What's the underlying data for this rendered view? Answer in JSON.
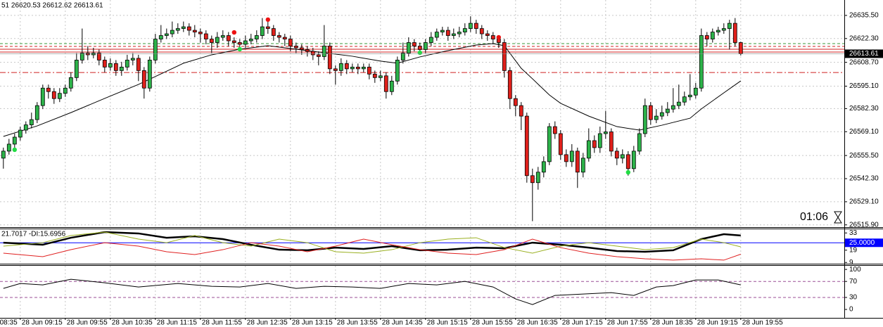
{
  "chart_data": [
    {
      "type": "candlestick",
      "header": "51 26620.53 26612.62 26613.61",
      "timer": "01:06",
      "up_color": "#2db34a",
      "down_color": "#e0201b",
      "grid": true,
      "xlim": [
        -0.6,
        149.4
      ],
      "xticks": [
        {
          "value": -5,
          "label": "28 Jun 08:35"
        },
        {
          "value": 3,
          "label": "28 Jun 09:15"
        },
        {
          "value": 11,
          "label": "28 Jun 09:55"
        },
        {
          "value": 19,
          "label": "28 Jun 10:35"
        },
        {
          "value": 27,
          "label": "28 Jun 11:15"
        },
        {
          "value": 35,
          "label": "28 Jun 11:55"
        },
        {
          "value": 43,
          "label": "28 Jun 12:35"
        },
        {
          "value": 51,
          "label": "28 Jun 13:15"
        },
        {
          "value": 59,
          "label": "28 Jun 13:55"
        },
        {
          "value": 67,
          "label": "28 Jun 14:35"
        },
        {
          "value": 75,
          "label": "28 Jun 15:15"
        },
        {
          "value": 83,
          "label": "28 Jun 15:55"
        },
        {
          "value": 91,
          "label": "28 Jun 16:35"
        },
        {
          "value": 99,
          "label": "28 Jun 17:15"
        },
        {
          "value": 107,
          "label": "28 Jun 17:55"
        },
        {
          "value": 115,
          "label": "28 Jun 18:35"
        },
        {
          "value": 123,
          "label": "28 Jun 19:15"
        },
        {
          "value": 131,
          "label": "28 Jun 19:55"
        }
      ],
      "ylim": [
        26514.6,
        26644.3
      ],
      "yticks": [
        {
          "value": 26635.5,
          "label": "26635.50"
        },
        {
          "value": 26622.3,
          "label": "26622.30"
        },
        {
          "value": 26608.7,
          "label": "26608.70"
        },
        {
          "value": 26595.1,
          "label": "26595.10"
        },
        {
          "value": 26582.3,
          "label": "26582.30"
        },
        {
          "value": 26569.1,
          "label": "26569.10"
        },
        {
          "value": 26555.5,
          "label": "26555.50"
        },
        {
          "value": 26542.3,
          "label": "26542.30"
        },
        {
          "value": 26529.1,
          "label": "26529.10"
        },
        {
          "value": 26515.9,
          "label": "26515.90"
        }
      ],
      "open": [
        26554,
        26558,
        26562,
        26566,
        26570,
        26573,
        26576,
        26584,
        26594,
        26592,
        26588,
        26591,
        26594,
        26600,
        26610,
        26614,
        26613,
        26614,
        26610,
        26606,
        26608,
        26604,
        26606,
        26610,
        26611,
        26604,
        26594,
        26610,
        26622,
        26624,
        26625,
        26627,
        26628,
        26629,
        26627,
        26626,
        26625,
        26622,
        26620,
        26623,
        26624,
        26621,
        26620,
        26619,
        26621,
        26622,
        26624,
        26629,
        26628,
        26624,
        26623,
        26622,
        26618,
        26617,
        26616,
        26615,
        26613,
        26612,
        26618,
        26605,
        26604,
        26608,
        26605,
        26606,
        26605,
        26606,
        26602,
        26600,
        26601,
        26592,
        26598,
        26610,
        26614,
        26620,
        26618,
        26616,
        26620,
        26623,
        26626,
        26627,
        26624,
        26625,
        26626,
        26628,
        26631,
        26628,
        26625,
        26624,
        26622,
        26620,
        26604,
        26588,
        26584,
        26578,
        26544,
        26540,
        26546,
        26552,
        26572,
        26568,
        26556,
        26552,
        26558,
        26546,
        26554,
        26564,
        26560,
        26568,
        26569,
        26558,
        26554,
        26556,
        26548,
        26558,
        26568,
        26584,
        26576,
        26578,
        26580,
        26582,
        26584,
        26586,
        26589,
        26590,
        26594,
        26624,
        26622,
        26626,
        26627,
        26628,
        26631,
        26620
      ],
      "high": [
        26560,
        26565,
        26568,
        26572,
        26575,
        26580,
        26586,
        26596,
        26596,
        26594,
        26594,
        26596,
        26603,
        26614,
        26628,
        26618,
        26617,
        26616,
        26612,
        26611,
        26610,
        26609,
        26613,
        26614,
        26613,
        26606,
        26612,
        26625,
        26630,
        26628,
        26632,
        26631,
        26632,
        26631,
        26630,
        26628,
        26627,
        26624,
        26626,
        26627,
        26626,
        26623,
        26622,
        26624,
        26625,
        26627,
        26634,
        26632,
        26630,
        26626,
        26625,
        26624,
        26620,
        26619,
        26618,
        26617,
        26615,
        26630,
        26620,
        26607,
        26611,
        26610,
        26608,
        26608,
        26608,
        26608,
        26604,
        26604,
        26603,
        26601,
        26612,
        26620,
        26623,
        26622,
        26620,
        26622,
        26626,
        26628,
        26629,
        26629,
        26628,
        26629,
        26631,
        26635,
        26633,
        26630,
        26627,
        26626,
        26624,
        26622,
        26606,
        26590,
        26586,
        26580,
        26548,
        26549,
        26555,
        26574,
        26575,
        26570,
        26559,
        26562,
        26560,
        26557,
        26571,
        26567,
        26572,
        26581,
        26571,
        26560,
        26559,
        26558,
        26561,
        26571,
        26588,
        26586,
        26582,
        26584,
        26586,
        26594,
        26596,
        26592,
        26602,
        26597,
        26628,
        26626,
        26628,
        26629,
        26631,
        26633,
        26634,
        26620.53
      ],
      "low": [
        26548,
        26556,
        26560,
        26564,
        26568,
        26571,
        26574,
        26582,
        26588,
        26585,
        26586,
        26589,
        26592,
        26598,
        26608,
        26610,
        26611,
        26607,
        26603,
        26604,
        26601,
        26601,
        26604,
        26607,
        26598,
        26588,
        26592,
        26608,
        26620,
        26622,
        26623,
        26625,
        26626,
        26624,
        26623,
        26620,
        26619,
        26614,
        26617,
        26621,
        26618,
        26617,
        26616,
        26617,
        26619,
        26620,
        26622,
        26625,
        26621,
        26620,
        26618,
        26615,
        26614,
        26613,
        26612,
        26610,
        26607,
        26610,
        26602,
        26596,
        26601,
        26602,
        26603,
        26602,
        26603,
        26599,
        26597,
        26598,
        26588,
        26590,
        26596,
        26608,
        26612,
        26615,
        26613,
        26614,
        26618,
        26621,
        26624,
        26621,
        26622,
        26623,
        26624,
        26626,
        26625,
        26622,
        26621,
        26619,
        26617,
        26600,
        26582,
        26578,
        26570,
        26540,
        26518,
        26536,
        26543,
        26550,
        26565,
        26553,
        26549,
        26549,
        26537,
        26543,
        26552,
        26557,
        26557,
        26565,
        26555,
        26550,
        26551,
        26544,
        26546,
        26556,
        26566,
        26573,
        26574,
        26576,
        26578,
        26580,
        26582,
        26584,
        26587,
        26588,
        26592,
        26618,
        26620,
        26624,
        26625,
        26616,
        26618,
        26612.62
      ],
      "close": [
        26558,
        26562,
        26566,
        26570,
        26573,
        26576,
        26584,
        26594,
        26592,
        26588,
        26591,
        26594,
        26600,
        26610,
        26614,
        26613,
        26614,
        26610,
        26606,
        26608,
        26604,
        26606,
        26610,
        26611,
        26604,
        26594,
        26610,
        26622,
        26624,
        26625,
        26627,
        26628,
        26629,
        26627,
        26626,
        26625,
        26622,
        26620,
        26623,
        26624,
        26621,
        26620,
        26619,
        26621,
        26622,
        26624,
        26629,
        26628,
        26624,
        26623,
        26622,
        26618,
        26617,
        26616,
        26615,
        26613,
        26612,
        26618,
        26605,
        26604,
        26608,
        26605,
        26606,
        26605,
        26606,
        26602,
        26600,
        26601,
        26592,
        26598,
        26610,
        26614,
        26620,
        26618,
        26616,
        26620,
        26623,
        26626,
        26627,
        26624,
        26625,
        26626,
        26628,
        26631,
        26628,
        26625,
        26624,
        26622,
        26620,
        26604,
        26588,
        26584,
        26578,
        26544,
        26540,
        26546,
        26552,
        26572,
        26568,
        26556,
        26552,
        26558,
        26546,
        26554,
        26564,
        26560,
        26568,
        26569,
        26558,
        26554,
        26556,
        26548,
        26558,
        26568,
        26584,
        26576,
        26578,
        26580,
        26582,
        26584,
        26586,
        26589,
        26590,
        26594,
        26624,
        26622,
        26626,
        26627,
        26628,
        26631,
        26620,
        26613.61
      ],
      "ma": {
        "color": "#000000",
        "x": [
          0,
          6,
          12,
          18,
          24,
          28,
          32,
          37,
          42,
          47,
          52,
          57,
          62,
          67,
          70,
          74,
          79,
          84,
          87,
          89,
          92,
          94,
          97,
          99,
          104,
          109,
          113,
          117,
          122,
          124,
          128,
          131
        ],
        "values": [
          26566.4,
          26572.4,
          26580.0,
          26588.1,
          26596.1,
          26602.1,
          26608.2,
          26613.0,
          26616.2,
          26618.2,
          26616.2,
          26614.2,
          26612.2,
          26609.4,
          26608.2,
          26611.8,
          26615.4,
          26618.6,
          26619.4,
          26618.2,
          26605.3,
          26599.3,
          26590.1,
          26585.3,
          26578.0,
          26572.0,
          26570.0,
          26572.8,
          26576.8,
          26582.1,
          26591.3,
          26598.1
        ]
      },
      "levels": [
        {
          "value": 26619.4,
          "color": "#3a9a3a",
          "dash": "dashed"
        },
        {
          "value": 26617.8,
          "color": "#d02020",
          "dash": "dashed"
        },
        {
          "value": 26616.2,
          "color": "#d02020",
          "dash": "solid"
        },
        {
          "value": 26614.6,
          "color": "#d02020",
          "dash": "solid"
        },
        {
          "value": 26602.9,
          "color": "#d02020",
          "dash": "dashdot"
        }
      ],
      "signals": [
        {
          "index": 2,
          "value": 26558.8,
          "color": "#22dd44"
        },
        {
          "index": 41,
          "value": 26625.8,
          "color": "#ee1111"
        },
        {
          "index": 42,
          "value": 26616.2,
          "color": "#22dd44"
        },
        {
          "index": 47,
          "value": 26633.1,
          "color": "#ee1111"
        },
        {
          "index": 74,
          "value": 26614.2,
          "color": "#22dd44"
        },
        {
          "index": 88,
          "value": 26623.0,
          "color": "#ee1111"
        },
        {
          "index": 111,
          "value": 26545.9,
          "color": "#22dd44"
        }
      ]
    },
    {
      "type": "line",
      "header": "21.7017 -DI:15.6956",
      "ylim": [
        8,
        36
      ],
      "yticks": [
        33,
        19,
        9
      ],
      "level": {
        "value": 25,
        "label": "25.0000"
      },
      "level_color": "#0000ff",
      "x": [
        0,
        7,
        12,
        18,
        24,
        29,
        34,
        39,
        44,
        49,
        54,
        59,
        64,
        69,
        74,
        79,
        84,
        89,
        94,
        99,
        104,
        109,
        114,
        119,
        124,
        128,
        131
      ],
      "series": [
        {
          "color": "#000000",
          "width": 2.5,
          "values": [
            25.1,
            23.4,
            29.1,
            33.7,
            32.6,
            29.1,
            30.3,
            28.0,
            23.4,
            19.4,
            18.9,
            21.1,
            20.0,
            22.3,
            18.9,
            19.4,
            21.1,
            20.6,
            25.1,
            23.4,
            21.1,
            18.3,
            17.7,
            18.9,
            28.0,
            32.0,
            30.9
          ]
        },
        {
          "color": "#9ab020",
          "width": 1,
          "values": [
            22.3,
            25.1,
            30.9,
            33.7,
            28.0,
            25.1,
            30.9,
            25.1,
            22.3,
            28.0,
            25.1,
            17.7,
            16.6,
            19.4,
            25.1,
            28.0,
            29.1,
            21.1,
            16.6,
            22.3,
            25.1,
            22.3,
            19.4,
            21.1,
            28.0,
            25.1,
            21.7
          ]
        },
        {
          "color": "#e02020",
          "width": 1,
          "values": [
            16.6,
            13.7,
            19.4,
            25.1,
            22.3,
            17.7,
            15.4,
            19.4,
            25.1,
            22.3,
            17.7,
            22.3,
            28.0,
            23.4,
            19.4,
            16.6,
            15.4,
            19.4,
            28.0,
            21.1,
            16.6,
            13.7,
            12.0,
            10.9,
            12.0,
            10.9,
            15.7
          ]
        }
      ]
    },
    {
      "type": "line",
      "ylim": [
        -21,
        109
      ],
      "yticks": [
        100,
        70,
        30,
        0
      ],
      "level_color": "#9b4f96",
      "x": [
        0,
        3,
        7,
        12,
        18,
        24,
        31,
        37,
        42,
        47,
        52,
        57,
        62,
        67,
        72,
        77,
        82,
        87,
        91,
        94,
        98,
        103,
        108,
        112,
        116,
        119,
        123,
        127,
        131
      ],
      "series": [
        {
          "color": "#000000",
          "width": 1,
          "values": [
            52.6,
            64.9,
            61.4,
            75.4,
            66.7,
            56.1,
            64.9,
            57.9,
            56.1,
            64.9,
            52.6,
            57.9,
            56.1,
            52.6,
            64.9,
            61.4,
            70.2,
            56.1,
            26.3,
            12.3,
            35.1,
            38.6,
            42.1,
            35.1,
            56.1,
            59.6,
            73.7,
            73.7,
            61.4
          ]
        }
      ]
    }
  ]
}
